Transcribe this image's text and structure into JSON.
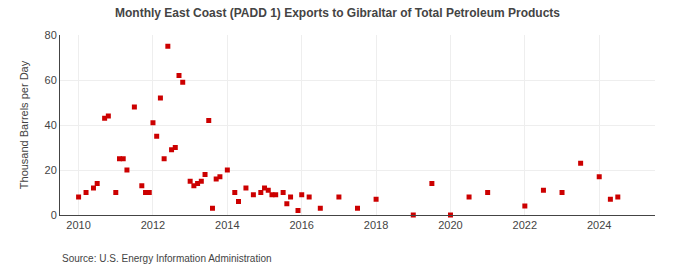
{
  "chart_data": {
    "type": "scatter",
    "title": "Monthly East Coast (PADD 1) Exports to Gibraltar of Total Petroleum Products",
    "ylabel": "Thousand Barrels per Day",
    "annotations": [
      "Source: U.S. Energy Information Administration"
    ],
    "color": "#cc0000",
    "marker": "square",
    "grid": true,
    "xlim": [
      2009.5,
      2025.5
    ],
    "ylim": [
      0,
      80
    ],
    "xticks": [
      2010,
      2012,
      2014,
      2016,
      2018,
      2020,
      2022,
      2024
    ],
    "yticks": [
      0,
      20,
      40,
      60,
      80
    ],
    "x": [
      2010.0,
      2010.2,
      2010.4,
      2010.5,
      2010.7,
      2010.8,
      2011.0,
      2011.1,
      2011.2,
      2011.3,
      2011.5,
      2011.7,
      2011.8,
      2011.9,
      2012.0,
      2012.1,
      2012.2,
      2012.3,
      2012.4,
      2012.5,
      2012.6,
      2012.7,
      2012.8,
      2013.0,
      2013.1,
      2013.2,
      2013.3,
      2013.4,
      2013.5,
      2013.6,
      2013.7,
      2013.8,
      2014.0,
      2014.2,
      2014.3,
      2014.5,
      2014.7,
      2014.9,
      2015.0,
      2015.1,
      2015.2,
      2015.3,
      2015.5,
      2015.6,
      2015.7,
      2015.9,
      2016.0,
      2016.2,
      2016.5,
      2017.0,
      2017.5,
      2018.0,
      2019.0,
      2019.5,
      2020.0,
      2020.5,
      2021.0,
      2022.0,
      2022.5,
      2023.0,
      2023.5,
      2024.0,
      2024.3,
      2024.5
    ],
    "values": [
      8,
      10,
      12,
      14,
      43,
      44,
      10,
      25,
      25,
      20,
      48,
      13,
      10,
      10,
      41,
      35,
      52,
      25,
      75,
      29,
      30,
      62,
      59,
      15,
      13,
      14,
      15,
      18,
      42,
      3,
      16,
      17,
      20,
      10,
      6,
      12,
      9,
      10,
      12,
      11,
      9,
      9,
      10,
      5,
      8,
      2,
      9,
      8,
      3,
      8,
      3,
      7,
      0,
      14,
      0,
      8,
      10,
      4,
      11,
      10,
      23,
      17,
      7,
      8
    ]
  }
}
